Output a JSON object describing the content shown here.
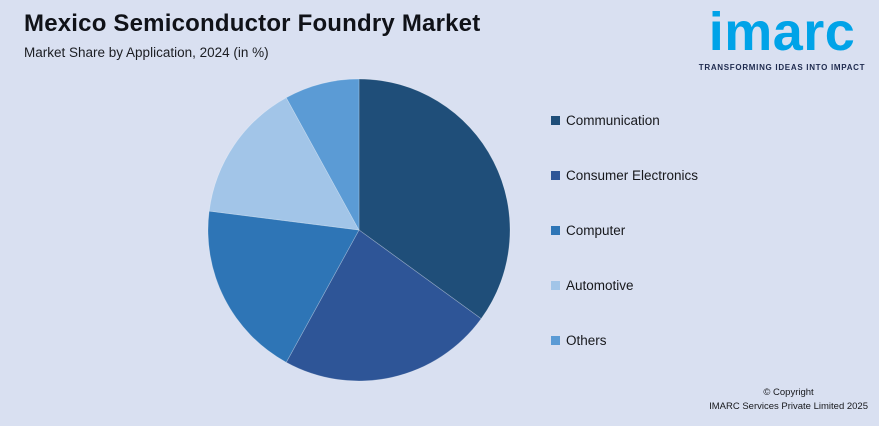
{
  "page": {
    "background": "#d9e0f1"
  },
  "header": {
    "title": "Mexico Semiconductor Foundry Market",
    "subtitle": "Market Share by Application, 2024 (in %)"
  },
  "branding": {
    "logo_text": "imarc",
    "logo_color": "#00a3e8",
    "tagline": "TRANSFORMING IDEAS INTO IMPACT"
  },
  "footer": {
    "copyright_line1": "© Copyright",
    "copyright_line2": "IMARC Services Private Limited 2025"
  },
  "chart_data": {
    "type": "pie",
    "title": "Mexico Semiconductor Foundry Market",
    "subtitle": "Market Share by Application, 2024 (in %)",
    "unit": "%",
    "start_angle_deg": 0,
    "direction": "clockwise",
    "legend_position": "right",
    "data_labels_shown": false,
    "segments": [
      {
        "label": "Communication",
        "value": 35,
        "color": "#1f4e79"
      },
      {
        "label": "Consumer Electronics",
        "value": 23,
        "color": "#2e5597"
      },
      {
        "label": "Computer",
        "value": 19,
        "color": "#2e75b6"
      },
      {
        "label": "Automotive",
        "value": 15,
        "color": "#a2c5e8"
      },
      {
        "label": "Others",
        "value": 8,
        "color": "#5b9bd5"
      }
    ]
  }
}
